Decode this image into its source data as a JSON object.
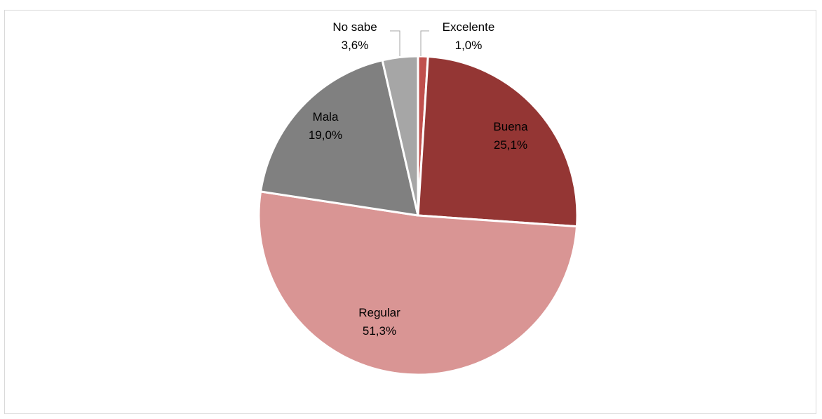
{
  "chart_data": {
    "type": "pie",
    "title": "",
    "slices": [
      {
        "label": "Excelente",
        "value": 1.0,
        "value_text": "1,0%",
        "color": "#C0504D"
      },
      {
        "label": "Buena",
        "value": 25.1,
        "value_text": "25,1%",
        "color": "#943634"
      },
      {
        "label": "Regular",
        "value": 51.3,
        "value_text": "51,3%",
        "color": "#D99594"
      },
      {
        "label": "Mala",
        "value": 19.0,
        "value_text": "19,0%",
        "color": "#808080"
      },
      {
        "label": "No sabe",
        "value": 3.6,
        "value_text": "3,6%",
        "color": "#A6A6A6"
      }
    ],
    "start_angle": "12 o'clock",
    "direction": "clockwise",
    "legend": "none",
    "data_labels": "category and percentage"
  }
}
